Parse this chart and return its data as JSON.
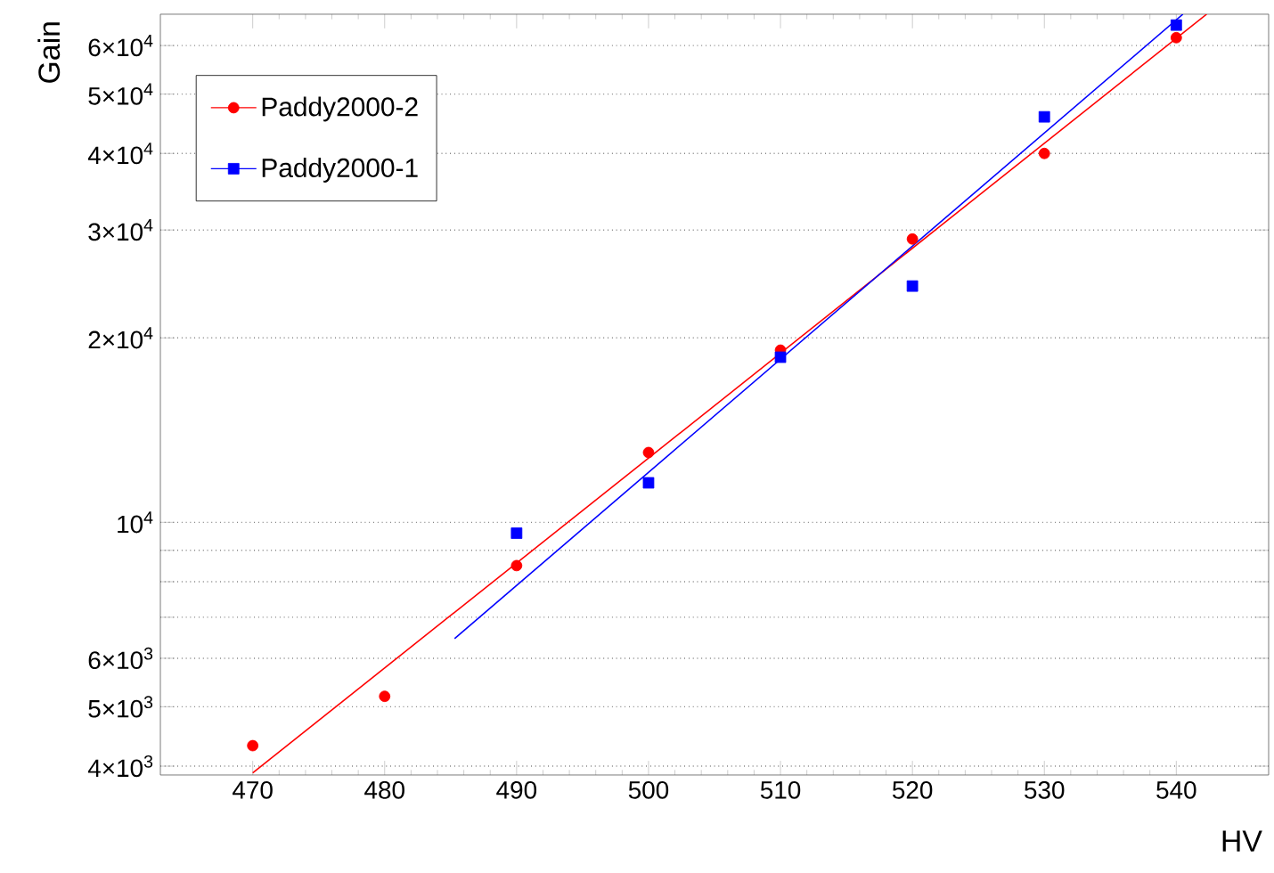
{
  "chart_data": {
    "type": "scatter",
    "xlabel": "HV",
    "ylabel": "Gain",
    "log": "y",
    "grid": "y",
    "legend": "top left",
    "xlim": [
      463,
      547
    ],
    "ylim": [
      3870,
      67500
    ],
    "xticks": [
      470,
      480,
      490,
      500,
      510,
      520,
      530,
      540
    ],
    "yticks": [
      {
        "value": 4000,
        "label": "4×10$^{3}$"
      },
      {
        "value": 5000,
        "label": "5×10$^{3}$"
      },
      {
        "value": 6000,
        "label": "6×10$^{3}$"
      },
      {
        "value": 7000,
        "label": null
      },
      {
        "value": 8000,
        "label": null
      },
      {
        "value": 9000,
        "label": null
      },
      {
        "value": 10000,
        "label": "10$^{4}$"
      },
      {
        "value": 20000,
        "label": "2×10$^{4}$"
      },
      {
        "value": 30000,
        "label": "3×10$^{4}$"
      },
      {
        "value": 40000,
        "label": "4×10$^{4}$"
      },
      {
        "value": 50000,
        "label": "5×10$^{4}$"
      },
      {
        "value": 60000,
        "label": "6×10$^{4}$"
      }
    ],
    "x": [
      470,
      480,
      490,
      500,
      510,
      520,
      530,
      540
    ],
    "series": [
      {
        "name": "Paddy2000-2",
        "color": "#ff0000",
        "marker": "circle",
        "values": [
          4320,
          5200,
          8500,
          13000,
          19100,
          29000,
          40000,
          61800
        ]
      },
      {
        "name": "Paddy2000-1",
        "color": "#0000ff",
        "marker": "square",
        "values": [
          null,
          null,
          9600,
          11600,
          18600,
          24300,
          45900,
          64800
        ]
      },
      {
        "type": "line",
        "color": "#ff0000",
        "marker": "none",
        "x": [
          470,
          542.3
        ],
        "values": [
          3900,
          67500
        ]
      },
      {
        "type": "line",
        "color": "#0000ff",
        "marker": "none",
        "x": [
          485.3,
          540.5
        ],
        "values": [
          6460,
          67500
        ]
      }
    ]
  }
}
